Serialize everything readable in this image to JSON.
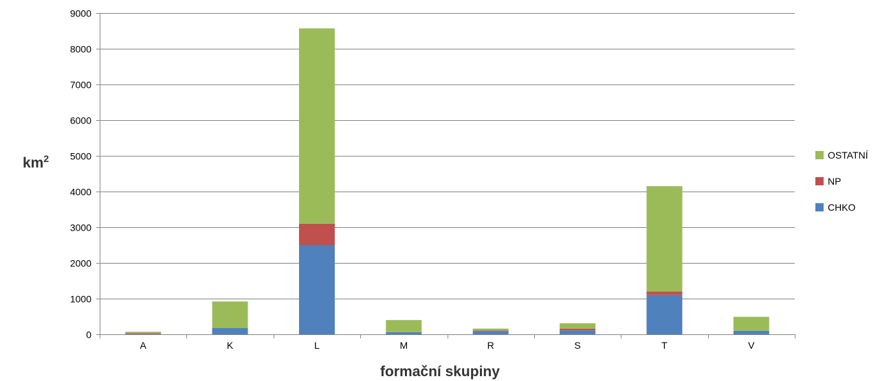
{
  "chart_data": {
    "type": "bar",
    "stacked": true,
    "categories": [
      "A",
      "K",
      "L",
      "M",
      "R",
      "S",
      "T",
      "V"
    ],
    "series": [
      {
        "name": "CHKO",
        "color": "#4F81BD",
        "values": [
          15,
          180,
          2500,
          60,
          90,
          110,
          1100,
          100
        ]
      },
      {
        "name": "NP",
        "color": "#C0504D",
        "values": [
          20,
          0,
          600,
          0,
          20,
          50,
          100,
          0
        ]
      },
      {
        "name": "OSTATNÍ",
        "color": "#9BBB59",
        "values": [
          35,
          740,
          5470,
          340,
          50,
          150,
          2950,
          390
        ]
      }
    ],
    "legend_order": [
      "OSTATNÍ",
      "NP",
      "CHKO"
    ],
    "ylim": [
      0,
      9000
    ],
    "yticks": [
      0,
      1000,
      2000,
      3000,
      4000,
      5000,
      6000,
      7000,
      8000,
      9000
    ],
    "xlabel": "formační skupiny",
    "ylabel_base": "km",
    "ylabel_sup": "2",
    "grid": true,
    "legend_position": "right"
  }
}
